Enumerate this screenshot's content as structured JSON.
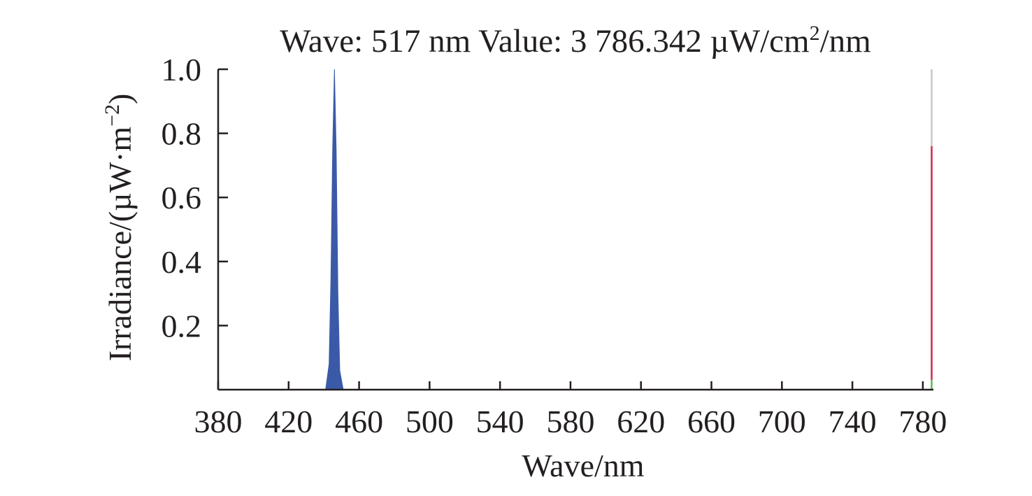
{
  "chart_data": {
    "type": "area",
    "title": {
      "prefix": "Wave: 517 nm Value: 3 786.342 µW/cm",
      "superscript": "2",
      "suffix": "/nm"
    },
    "xlabel": "Wave/nm",
    "ylabel": {
      "prefix": "Irradiance/(µW·m",
      "superscript": "−2",
      "suffix": ")"
    },
    "xlim": [
      380,
      786
    ],
    "ylim": [
      0,
      1.0
    ],
    "x_ticks": [
      380,
      420,
      460,
      500,
      540,
      580,
      620,
      660,
      700,
      740,
      780
    ],
    "x_tick_labels": [
      "380",
      "420",
      "460",
      "500",
      "540",
      "580",
      "620",
      "660",
      "700",
      "740",
      "780"
    ],
    "y_ticks": [
      0.2,
      0.4,
      0.6,
      0.8,
      1.0
    ],
    "y_tick_labels": [
      "0.2",
      "0.4",
      "0.6",
      "0.8",
      "1.0"
    ],
    "grid": false,
    "legend": "none",
    "series": [
      {
        "color": "#3a5aa8",
        "points": [
          [
            441,
            0
          ],
          [
            443,
            0.08
          ],
          [
            444,
            0.35
          ],
          [
            445,
            0.75
          ],
          [
            446,
            1.0
          ],
          [
            447,
            0.75
          ],
          [
            448,
            0.3
          ],
          [
            449,
            0.06
          ],
          [
            451,
            0
          ]
        ]
      }
    ],
    "marker": {
      "x": 785,
      "segments": [
        {
          "from": 0.76,
          "to": 1.0,
          "color": "#c8c8c8"
        },
        {
          "from": 0.03,
          "to": 0.76,
          "color": "#d8234f"
        },
        {
          "from": 0.0,
          "to": 0.03,
          "color": "#5cb85c"
        }
      ]
    }
  }
}
